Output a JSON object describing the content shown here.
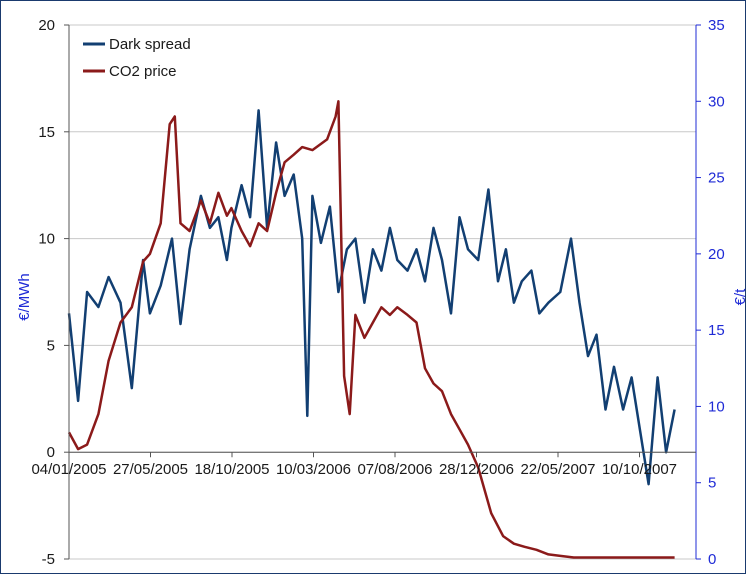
{
  "chart_data": {
    "type": "line",
    "title": "",
    "x_tick_labels": [
      "04/01/2005",
      "27/05/2005",
      "18/10/2005",
      "10/03/2006",
      "07/08/2006",
      "28/12/2006",
      "22/05/2007",
      "10/10/2007"
    ],
    "ylabel_left": "€/MWh",
    "ylabel_right": "€/t",
    "ylim_left": [
      -5,
      20
    ],
    "ylim_right": [
      0,
      35
    ],
    "yticks_left": [
      "20",
      "15",
      "10",
      "5",
      "0",
      "-5"
    ],
    "yticks_right": [
      "35",
      "30",
      "25",
      "20",
      "15",
      "10",
      "5",
      "0"
    ],
    "grid": true,
    "legend_position": "top-left",
    "colors": {
      "dark_spread": "#123f72",
      "co2_price": "#8b1a1a",
      "right_axis": "#1f2bd6"
    },
    "series": [
      {
        "name": "Dark spread",
        "axis": "left",
        "x": [
          "2005-01-04",
          "2005-01-20",
          "2005-02-05",
          "2005-02-25",
          "2005-03-15",
          "2005-04-05",
          "2005-04-25",
          "2005-05-15",
          "2005-05-27",
          "2005-06-15",
          "2005-07-05",
          "2005-07-20",
          "2005-08-05",
          "2005-08-25",
          "2005-09-10",
          "2005-09-25",
          "2005-10-10",
          "2005-10-18",
          "2005-11-05",
          "2005-11-20",
          "2005-12-05",
          "2005-12-20",
          "2006-01-05",
          "2006-01-20",
          "2006-02-05",
          "2006-02-20",
          "2006-03-01",
          "2006-03-10",
          "2006-03-25",
          "2006-04-10",
          "2006-04-25",
          "2006-05-10",
          "2006-05-25",
          "2006-06-10",
          "2006-06-25",
          "2006-07-10",
          "2006-07-25",
          "2006-08-07",
          "2006-08-25",
          "2006-09-10",
          "2006-09-25",
          "2006-10-10",
          "2006-10-25",
          "2006-11-10",
          "2006-11-25",
          "2006-12-10",
          "2006-12-28",
          "2007-01-15",
          "2007-02-01",
          "2007-02-15",
          "2007-03-01",
          "2007-03-15",
          "2007-04-01",
          "2007-04-15",
          "2007-05-01",
          "2007-05-22",
          "2007-06-10",
          "2007-06-25",
          "2007-07-10",
          "2007-07-25",
          "2007-08-10",
          "2007-08-25",
          "2007-09-10",
          "2007-09-25",
          "2007-10-10",
          "2007-10-25",
          "2007-11-10",
          "2007-11-25",
          "2007-12-10"
        ],
        "values": [
          6.5,
          2.4,
          7.5,
          6.8,
          8.2,
          7.0,
          3.0,
          9.0,
          6.5,
          7.8,
          10.0,
          6.0,
          9.5,
          12.0,
          10.5,
          11.0,
          9.0,
          10.5,
          12.5,
          11.0,
          16.0,
          10.5,
          14.5,
          12.0,
          13.0,
          10.0,
          1.7,
          12.0,
          9.8,
          11.5,
          7.5,
          9.5,
          10.0,
          7.0,
          9.5,
          8.5,
          10.5,
          9.0,
          8.5,
          9.5,
          8.0,
          10.5,
          9.0,
          6.5,
          11.0,
          9.5,
          9.0,
          12.3,
          8.0,
          9.5,
          7.0,
          8.0,
          8.5,
          6.5,
          7.0,
          7.5,
          10.0,
          7.0,
          4.5,
          5.5,
          2.0,
          4.0,
          2.0,
          3.5,
          1.0,
          -1.5,
          3.5,
          0.0,
          2.0
        ]
      },
      {
        "name": "CO2 price",
        "axis": "right",
        "x": [
          "2005-01-04",
          "2005-01-20",
          "2005-02-05",
          "2005-02-25",
          "2005-03-15",
          "2005-04-05",
          "2005-04-25",
          "2005-05-15",
          "2005-05-27",
          "2005-06-15",
          "2005-07-01",
          "2005-07-10",
          "2005-07-20",
          "2005-08-05",
          "2005-08-25",
          "2005-09-10",
          "2005-09-25",
          "2005-10-10",
          "2005-10-18",
          "2005-11-05",
          "2005-11-20",
          "2005-12-05",
          "2005-12-20",
          "2006-01-05",
          "2006-01-20",
          "2006-02-05",
          "2006-02-20",
          "2006-03-10",
          "2006-04-05",
          "2006-04-20",
          "2006-04-25",
          "2006-05-05",
          "2006-05-15",
          "2006-05-25",
          "2006-06-10",
          "2006-06-25",
          "2006-07-10",
          "2006-07-25",
          "2006-08-07",
          "2006-08-25",
          "2006-09-10",
          "2006-09-25",
          "2006-10-10",
          "2006-10-25",
          "2006-11-10",
          "2006-11-25",
          "2006-12-10",
          "2006-12-28",
          "2007-01-20",
          "2007-02-10",
          "2007-03-01",
          "2007-03-20",
          "2007-04-10",
          "2007-05-01",
          "2007-05-22",
          "2007-06-15",
          "2007-07-10",
          "2007-08-10",
          "2007-09-10",
          "2007-10-10",
          "2007-11-10",
          "2007-12-10"
        ],
        "values": [
          8.3,
          7.2,
          7.5,
          9.5,
          13.0,
          15.5,
          16.5,
          19.5,
          20.0,
          22.0,
          28.5,
          29.0,
          22.0,
          21.5,
          23.5,
          22.0,
          24.0,
          22.5,
          23.0,
          21.5,
          20.5,
          22.0,
          21.5,
          24.0,
          26.0,
          26.5,
          27.0,
          26.8,
          27.5,
          29.0,
          30.0,
          12.0,
          9.5,
          16.0,
          14.5,
          15.5,
          16.5,
          16.0,
          16.5,
          16.0,
          15.5,
          12.5,
          11.5,
          11.0,
          9.5,
          8.5,
          7.5,
          6.0,
          3.0,
          1.5,
          1.0,
          0.8,
          0.6,
          0.3,
          0.2,
          0.1,
          0.1,
          0.1,
          0.1,
          0.1,
          0.1,
          0.1
        ]
      }
    ]
  }
}
